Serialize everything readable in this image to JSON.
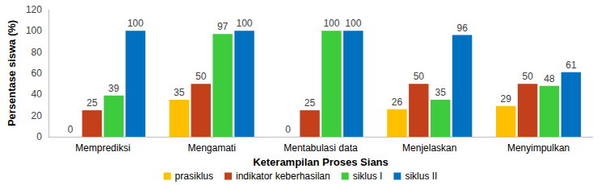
{
  "chart_data": {
    "type": "bar",
    "x_label": "Keterampilan Proses Sians",
    "y_label": "Persentase siswa (%)",
    "categories": [
      "Memprediksi",
      "Mengamati",
      "Mentabulasi data",
      "Menjelaskan",
      "Menyimpulkan"
    ],
    "series": [
      {
        "name": "prasiklus",
        "color": "#ffc000",
        "values": [
          0,
          35,
          0,
          26,
          29
        ]
      },
      {
        "name": "indikator keberhasilan",
        "color": "#c4401a",
        "values": [
          25,
          50,
          25,
          50,
          50
        ]
      },
      {
        "name": "siklus I",
        "color": "#3ccc3c",
        "values": [
          39,
          97,
          100,
          35,
          48
        ]
      },
      {
        "name": "siklus II",
        "color": "#0070c0",
        "values": [
          100,
          100,
          100,
          96,
          61
        ]
      }
    ],
    "ylim": [
      0,
      120
    ],
    "yticks": [
      0,
      20,
      40,
      60,
      80,
      100,
      120
    ],
    "grid": false,
    "legend": "bottom",
    "data_labels": true
  }
}
